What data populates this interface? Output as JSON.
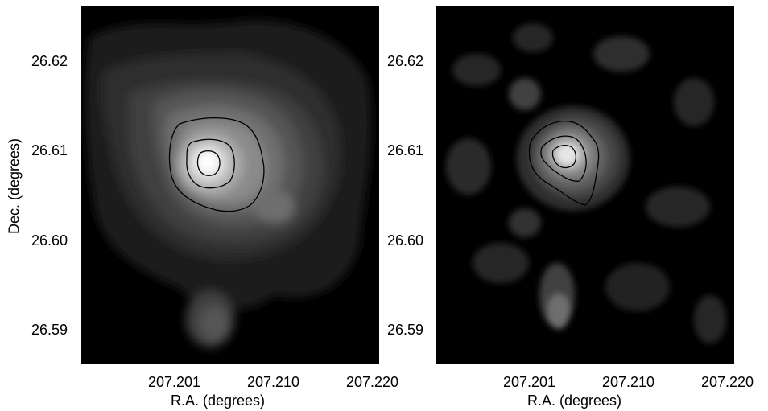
{
  "chart_data": [
    {
      "type": "heatmap",
      "xlabel": "R.A. (degrees)",
      "ylabel": "Dec. (degrees)",
      "xticks": [
        "207.201",
        "207.210",
        "207.220"
      ],
      "yticks": [
        "26.62",
        "26.61",
        "26.60",
        "26.59"
      ],
      "colormap": "grayscale",
      "contour_levels": 3,
      "peak": {
        "ra": 207.2035,
        "dec": 26.6085
      }
    },
    {
      "type": "heatmap",
      "xlabel": "R.A. (degrees)",
      "ylabel": "",
      "xticks": [
        "207.201",
        "207.210",
        "207.220"
      ],
      "yticks": [
        "26.62",
        "26.61",
        "26.60",
        "26.59"
      ],
      "colormap": "grayscale",
      "contour_levels": 3,
      "peak": {
        "ra": 207.2035,
        "dec": 26.609
      }
    }
  ]
}
